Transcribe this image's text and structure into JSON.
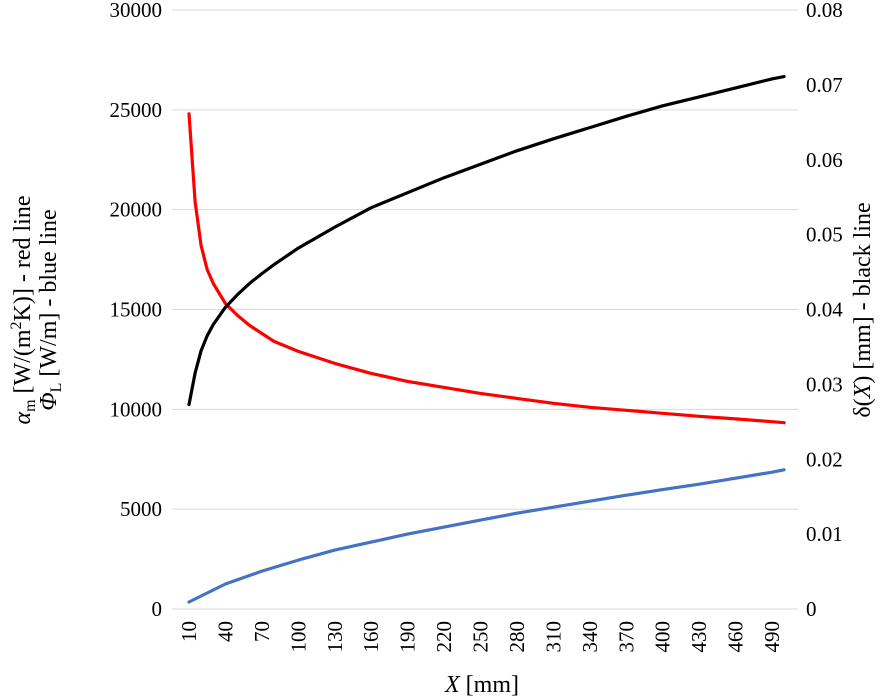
{
  "chart_data": {
    "type": "line",
    "xlabel": {
      "var": "X",
      "unit": " [mm]"
    },
    "ylabel_left": {
      "line1": {
        "var": "α",
        "sub": "m",
        "text1": " [W/(m",
        "sup": "2",
        "text2": "K)] - red line"
      },
      "line2": {
        "var": "Φ",
        "sub": "L",
        "text": " [W/m] - blue line"
      }
    },
    "ylabel_right": {
      "text1": "δ(",
      "var": "X",
      "text2": ") [mm] - black line"
    },
    "x_ticks": [
      "10",
      "40",
      "70",
      "100",
      "130",
      "160",
      "190",
      "220",
      "250",
      "280",
      "310",
      "340",
      "370",
      "400",
      "430",
      "460",
      "490"
    ],
    "y_left": {
      "ticks": [
        "0",
        "5000",
        "10000",
        "15000",
        "20000",
        "25000",
        "30000"
      ],
      "min": 0,
      "max": 30000
    },
    "y_right": {
      "ticks": [
        "0",
        "0.01",
        "0.02",
        "0.03",
        "0.04",
        "0.05",
        "0.06",
        "0.07",
        "0.08"
      ],
      "min": 0,
      "max": 0.08
    },
    "xlim": [
      10,
      500
    ],
    "grid": true,
    "series": [
      {
        "color": "#ff0000",
        "axis": "left",
        "x": [
          10,
          15,
          20,
          25,
          30,
          40,
          50,
          60,
          70,
          80,
          100,
          130,
          160,
          190,
          220,
          250,
          280,
          310,
          340,
          370,
          400,
          430,
          460,
          490,
          500
        ],
        "y": [
          24800,
          20400,
          18200,
          17000,
          16300,
          15300,
          14700,
          14200,
          13800,
          13400,
          12900,
          12300,
          11800,
          11400,
          11100,
          10800,
          10550,
          10300,
          10100,
          9950,
          9800,
          9650,
          9520,
          9380,
          9330
        ]
      },
      {
        "color": "#4472c4",
        "axis": "left",
        "x": [
          10,
          40,
          70,
          100,
          130,
          160,
          190,
          220,
          250,
          280,
          310,
          340,
          370,
          400,
          430,
          460,
          490,
          500
        ],
        "y": [
          350,
          1250,
          1900,
          2450,
          2950,
          3350,
          3750,
          4100,
          4450,
          4800,
          5100,
          5400,
          5700,
          5980,
          6250,
          6550,
          6850,
          6970
        ]
      },
      {
        "color": "#000000",
        "axis": "right",
        "x": [
          10,
          15,
          20,
          25,
          30,
          40,
          50,
          60,
          70,
          80,
          100,
          130,
          160,
          190,
          220,
          250,
          280,
          310,
          340,
          370,
          400,
          430,
          460,
          490,
          500
        ],
        "y": [
          0.0273,
          0.0315,
          0.0345,
          0.0365,
          0.038,
          0.0403,
          0.042,
          0.0435,
          0.0448,
          0.046,
          0.0482,
          0.051,
          0.0536,
          0.0556,
          0.0576,
          0.0594,
          0.0612,
          0.0628,
          0.0643,
          0.0658,
          0.0672,
          0.0684,
          0.0696,
          0.0708,
          0.0711
        ]
      }
    ]
  }
}
